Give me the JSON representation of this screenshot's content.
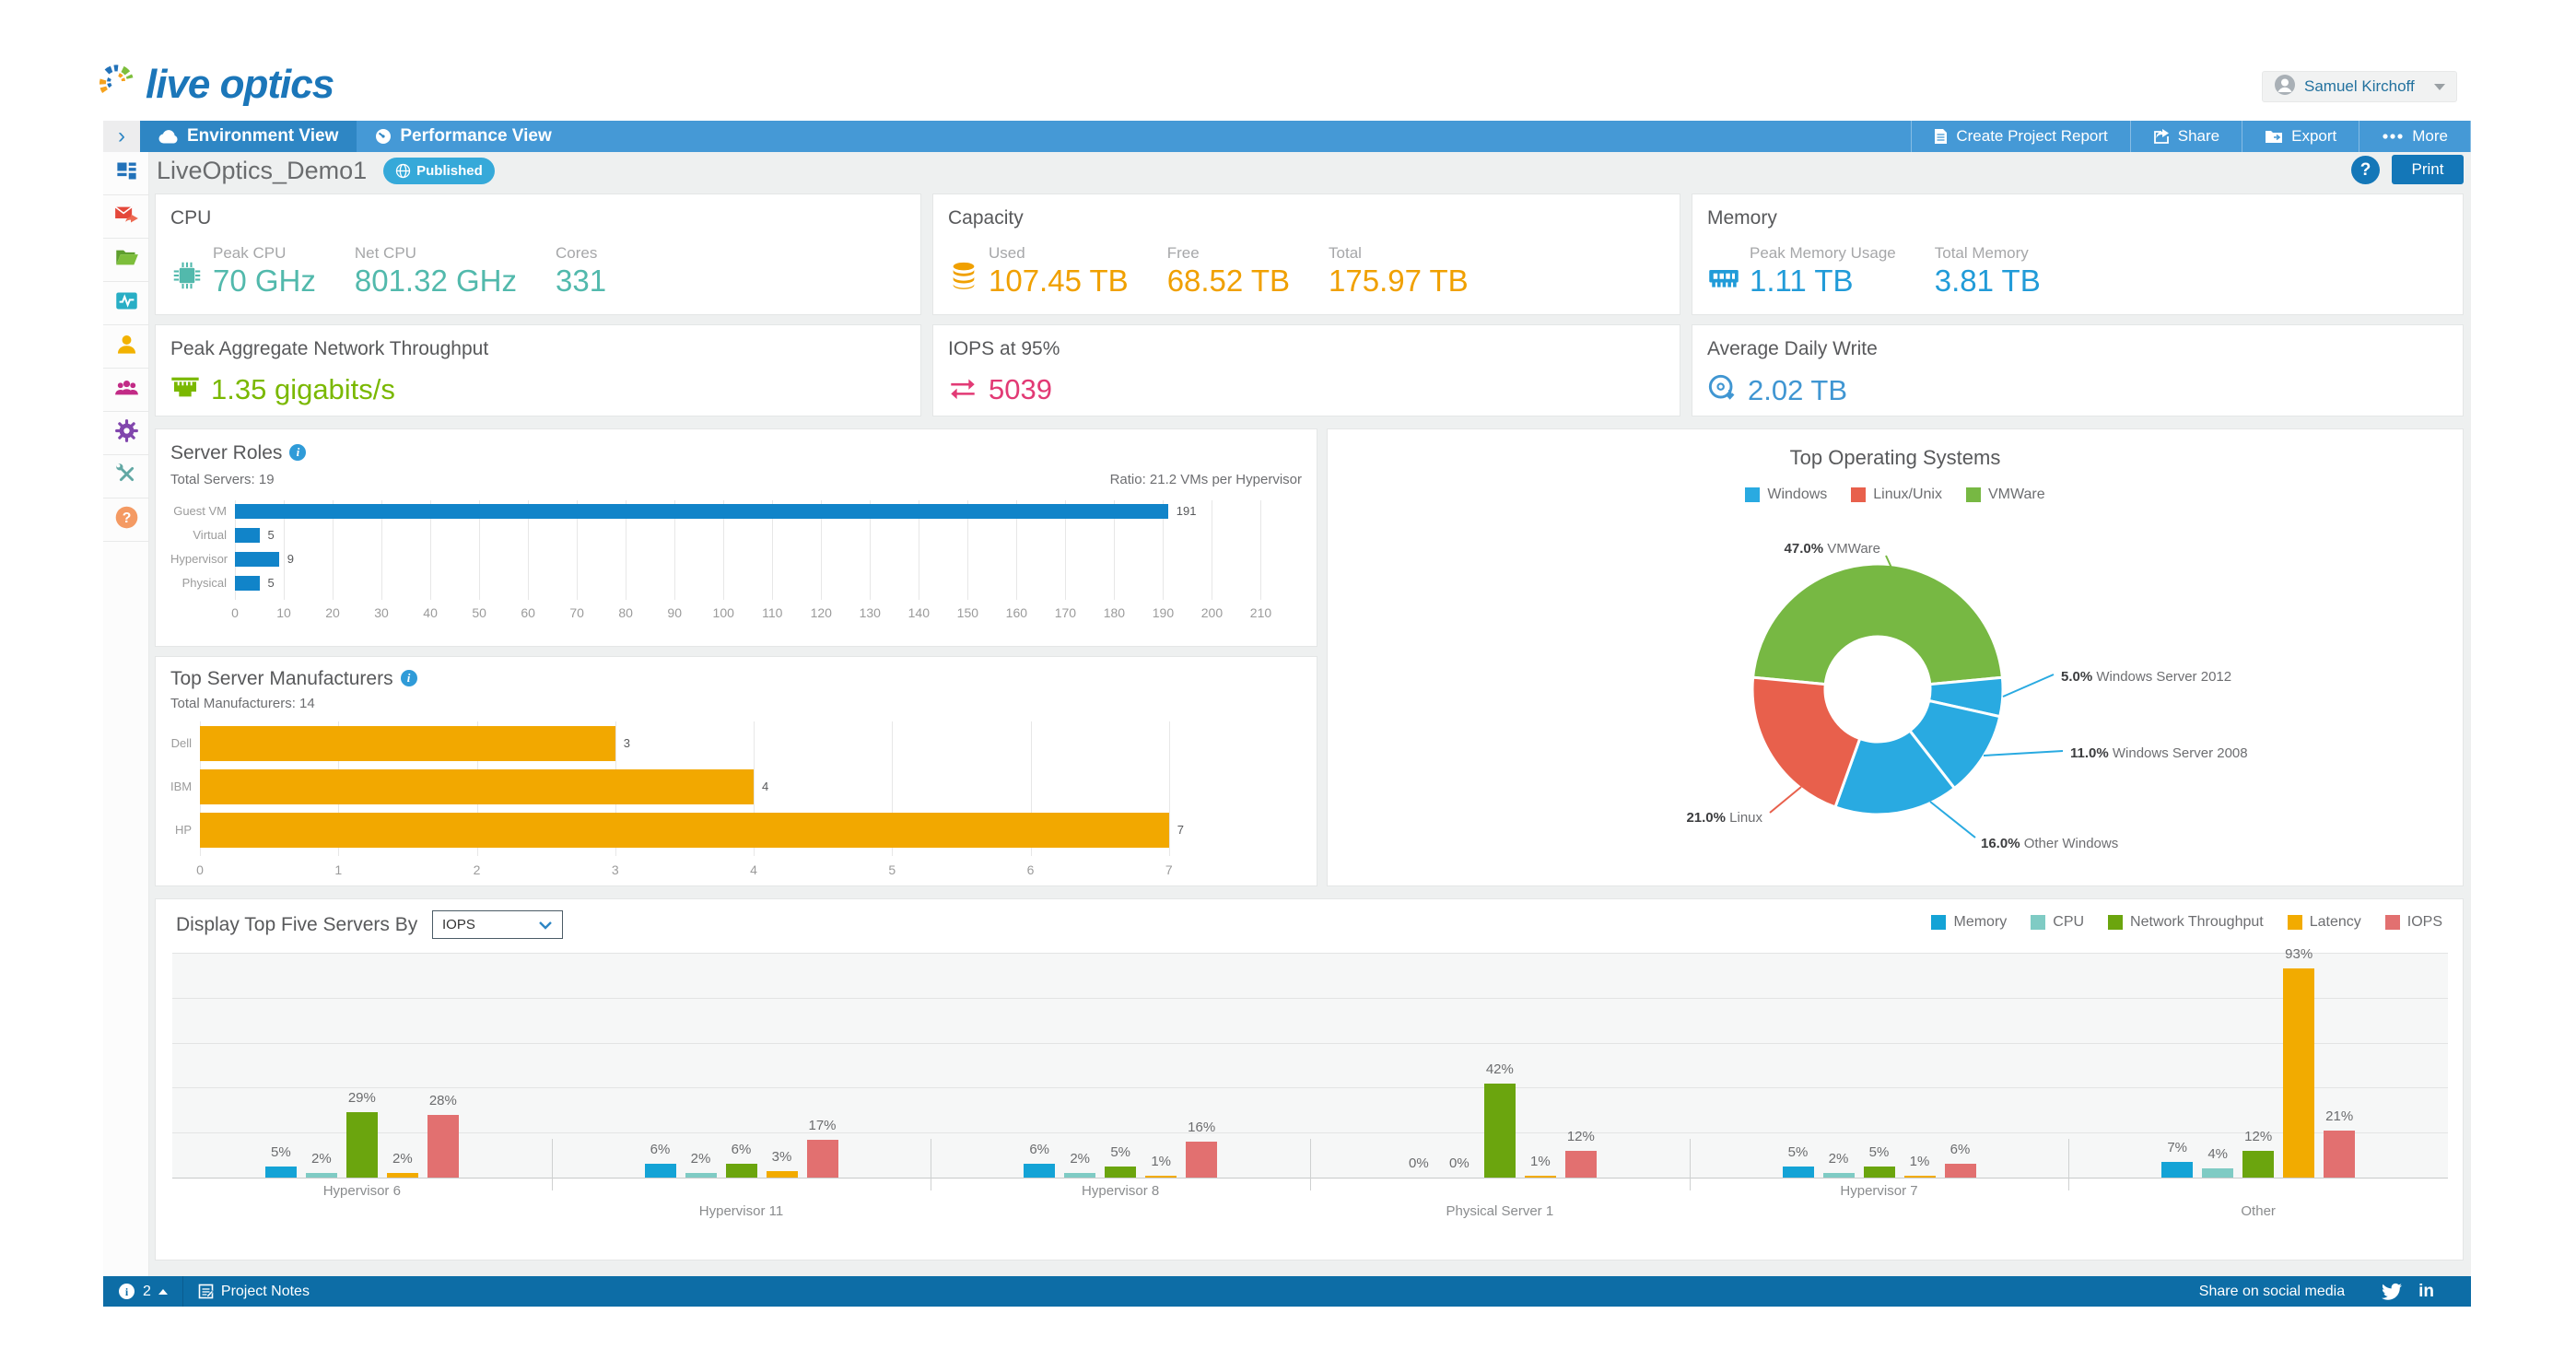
{
  "header": {
    "logo": "live optics",
    "user": {
      "name": "Samuel Kirchoff"
    }
  },
  "nav": {
    "tabs": [
      {
        "label": "Environment View",
        "active": true
      },
      {
        "label": "Performance View",
        "active": false
      }
    ],
    "actions": [
      {
        "label": "Create Project Report"
      },
      {
        "label": "Share"
      },
      {
        "label": "Export"
      },
      {
        "label": "More"
      }
    ]
  },
  "titlebar": {
    "project": "LiveOptics_Demo1",
    "badge": "Published",
    "help": "?",
    "print": "Print"
  },
  "sidebar": {
    "items": [
      {
        "icon": "dashboard-icon"
      },
      {
        "icon": "mail-icon"
      },
      {
        "icon": "folder-icon"
      },
      {
        "icon": "activity-icon"
      },
      {
        "icon": "user-icon"
      },
      {
        "icon": "group-icon"
      },
      {
        "icon": "gear-icon"
      },
      {
        "icon": "tools-icon"
      },
      {
        "icon": "help-icon"
      }
    ]
  },
  "cards": {
    "cpu": {
      "title": "CPU",
      "color": "#52b9ac",
      "metrics": [
        {
          "label": "Peak CPU",
          "value": "70 GHz"
        },
        {
          "label": "Net CPU",
          "value": "801.32 GHz"
        },
        {
          "label": "Cores",
          "value": "331"
        }
      ]
    },
    "capacity": {
      "title": "Capacity",
      "color": "#f0a000",
      "metrics": [
        {
          "label": "Used",
          "value": "107.45 TB"
        },
        {
          "label": "Free",
          "value": "68.52 TB"
        },
        {
          "label": "Total",
          "value": "175.97 TB"
        }
      ]
    },
    "memory": {
      "title": "Memory",
      "color": "#219bd8",
      "metrics": [
        {
          "label": "Peak Memory Usage",
          "value": "1.11 TB"
        },
        {
          "label": "Total Memory",
          "value": "3.81 TB"
        }
      ]
    },
    "network": {
      "title": "Peak Aggregate Network Throughput",
      "value": "1.35 gigabits/s",
      "color": "#7ab800"
    },
    "iops": {
      "title": "IOPS at 95%",
      "value": "5039",
      "color": "#e23a75"
    },
    "write": {
      "title": "Average Daily Write",
      "value": "2.02 TB",
      "color": "#4096d2"
    }
  },
  "footer": {
    "count": "2",
    "notes": "Project Notes",
    "share": "Share on social media"
  },
  "chart_data": [
    {
      "id": "server_roles",
      "type": "bar",
      "orientation": "horizontal",
      "title": "Server Roles",
      "total_label": "Total Servers: 19",
      "ratio_label": "Ratio: 21.2 VMs per Hypervisor",
      "categories": [
        "Guest VM",
        "Virtual",
        "Hypervisor",
        "Physical"
      ],
      "values": [
        191,
        5,
        9,
        5
      ],
      "bar_color": "#1184c9",
      "xlim": [
        0,
        215
      ],
      "xticks_step": 10,
      "xticks_max": 210,
      "grid": true
    },
    {
      "id": "manufacturers",
      "type": "bar",
      "orientation": "horizontal",
      "title": "Top Server Manufacturers",
      "total_label": "Total Manufacturers: 14",
      "categories": [
        "Dell",
        "IBM",
        "HP"
      ],
      "values": [
        3,
        4,
        7
      ],
      "bar_color": "#f2a800",
      "xlim": [
        0,
        7.8
      ],
      "xticks_step": 1,
      "xticks_max": 7,
      "grid": true
    },
    {
      "id": "top_os",
      "type": "pie",
      "title": "Top Operating Systems",
      "legend": [
        {
          "label": "Windows",
          "color": "#29aae1"
        },
        {
          "label": "Linux/Unix",
          "color": "#e8604c"
        },
        {
          "label": "VMWare",
          "color": "#77b843"
        }
      ],
      "slices": [
        {
          "label": "VMWare",
          "pct": 47.0,
          "color": "#77b843"
        },
        {
          "label": "Windows Server 2012",
          "pct": 5.0,
          "color": "#29aae1"
        },
        {
          "label": "Windows Server 2008",
          "pct": 11.0,
          "color": "#29aae1"
        },
        {
          "label": "Other Windows",
          "pct": 16.0,
          "color": "#29aae1"
        },
        {
          "label": "Linux",
          "pct": 21.0,
          "color": "#e8604c"
        }
      ],
      "donut": true,
      "legend_position": "top"
    },
    {
      "id": "top_servers",
      "type": "bar",
      "control_label": "Display Top Five Servers By",
      "selected_option": "IOPS",
      "series": [
        {
          "name": "Memory",
          "color": "#14a3d6"
        },
        {
          "name": "CPU",
          "color": "#7fcbc4"
        },
        {
          "name": "Network Throughput",
          "color": "#6ba50e"
        },
        {
          "name": "Latency",
          "color": "#f2ab00"
        },
        {
          "name": "IOPS",
          "color": "#e27070"
        }
      ],
      "categories": [
        "Hypervisor 6",
        "Hypervisor 11",
        "Hypervisor 8",
        "Physical Server 1",
        "Hypervisor 7",
        "Other"
      ],
      "values_pct": [
        [
          5,
          2,
          29,
          2,
          28
        ],
        [
          6,
          2,
          6,
          3,
          17
        ],
        [
          6,
          2,
          5,
          1,
          16
        ],
        [
          0,
          0,
          42,
          1,
          12
        ],
        [
          5,
          2,
          5,
          1,
          6
        ],
        [
          7,
          4,
          12,
          93,
          21
        ]
      ],
      "ylim": [
        0,
        100
      ],
      "grid": true,
      "value_label_suffix": "%",
      "legend_position": "top-right"
    }
  ]
}
